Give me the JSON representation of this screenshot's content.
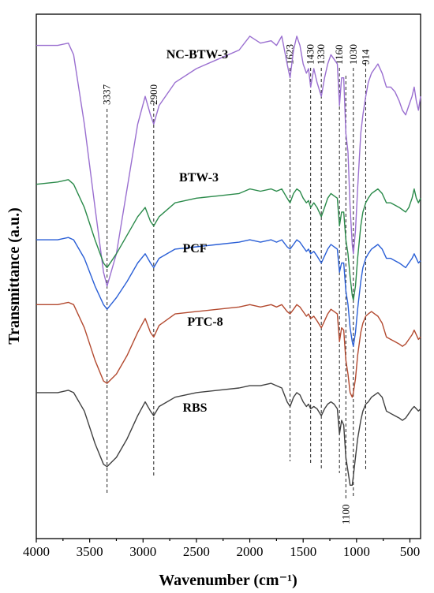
{
  "chart_data": {
    "type": "line",
    "xlabel": "Wavenumber (cm⁻¹)",
    "ylabel": "Transmittance (a.u.)",
    "xlim": [
      4000,
      400
    ],
    "x_reversed": true,
    "y_ticks_shown": false,
    "grid": false,
    "x_ticks": [
      4000,
      3500,
      3000,
      2500,
      2000,
      1500,
      1000,
      500
    ],
    "x_tick_labels": [
      "4000",
      "3500",
      "3000",
      "2500",
      "2000",
      "1500",
      "1000",
      "500"
    ],
    "peaks": [
      {
        "x": 3337,
        "label": "3337"
      },
      {
        "x": 2900,
        "label": "2900"
      },
      {
        "x": 1623,
        "label": "1623"
      },
      {
        "x": 1430,
        "label": "1430"
      },
      {
        "x": 1330,
        "label": "1330"
      },
      {
        "x": 1160,
        "label": "1160"
      },
      {
        "x": 1100,
        "label": "1100"
      },
      {
        "x": 1030,
        "label": "1030"
      },
      {
        "x": 914,
        "label": "914"
      }
    ],
    "series": [
      {
        "name": "NC-BTW-3",
        "color": "#9a6fd0",
        "x": [
          4000,
          3800,
          3700,
          3650,
          3550,
          3450,
          3370,
          3337,
          3250,
          3150,
          3050,
          2980,
          2930,
          2900,
          2850,
          2700,
          2500,
          2300,
          2100,
          2000,
          1900,
          1800,
          1750,
          1700,
          1650,
          1623,
          1590,
          1560,
          1530,
          1500,
          1470,
          1450,
          1430,
          1400,
          1370,
          1330,
          1300,
          1270,
          1240,
          1210,
          1180,
          1160,
          1140,
          1120,
          1100,
          1080,
          1060,
          1040,
          1030,
          1010,
          990,
          960,
          940,
          914,
          890,
          860,
          830,
          800,
          760,
          720,
          680,
          640,
          600,
          570,
          540,
          510,
          480,
          460,
          440,
          420,
          400
        ],
        "y": [
          97,
          97,
          97.5,
          95,
          80,
          62,
          48,
          45,
          52,
          66,
          80,
          86,
          82,
          80,
          84,
          89,
          92,
          94,
          96,
          99,
          97.5,
          98,
          97,
          99,
          93,
          90,
          96,
          99,
          97,
          93,
          91,
          92,
          88,
          92,
          89,
          86,
          90,
          93,
          95,
          94,
          93,
          84,
          90,
          90,
          78,
          74,
          62,
          54,
          52,
          57,
          66,
          78,
          82,
          86,
          89,
          91,
          92,
          93,
          91,
          88,
          88,
          87,
          85,
          83,
          82,
          84,
          86,
          88,
          85,
          83,
          86
        ]
      },
      {
        "name": "BTW-3",
        "color": "#2a8a4a",
        "x": [
          4000,
          3800,
          3700,
          3650,
          3550,
          3450,
          3370,
          3337,
          3250,
          3150,
          3050,
          2980,
          2930,
          2900,
          2850,
          2700,
          2500,
          2300,
          2100,
          2000,
          1900,
          1800,
          1750,
          1700,
          1650,
          1623,
          1590,
          1560,
          1530,
          1500,
          1470,
          1450,
          1430,
          1400,
          1370,
          1330,
          1300,
          1270,
          1240,
          1210,
          1180,
          1160,
          1140,
          1120,
          1100,
          1080,
          1060,
          1040,
          1030,
          1010,
          990,
          960,
          940,
          914,
          890,
          860,
          830,
          800,
          760,
          720,
          680,
          640,
          600,
          570,
          540,
          510,
          480,
          460,
          440,
          420,
          400
        ],
        "y": [
          67,
          67.5,
          68,
          67,
          62,
          55,
          50,
          49,
          52,
          56,
          60,
          62,
          59,
          58,
          60,
          63,
          64,
          64.5,
          65,
          66,
          65.5,
          66,
          65.5,
          66,
          64,
          63,
          65,
          66,
          65.5,
          64,
          63,
          63.5,
          62,
          63,
          62,
          60,
          62,
          64,
          65,
          64.5,
          64,
          58,
          61,
          61,
          55,
          52,
          47,
          43,
          42,
          45,
          51,
          58,
          61,
          63,
          64,
          65,
          65.5,
          66,
          65,
          63,
          63,
          62.5,
          62,
          61.5,
          61,
          62,
          64,
          66,
          64,
          63,
          64
        ]
      },
      {
        "name": "PCF",
        "color": "#2a5fd6",
        "x": [
          4000,
          3800,
          3700,
          3650,
          3550,
          3450,
          3370,
          3337,
          3250,
          3150,
          3050,
          2980,
          2930,
          2900,
          2850,
          2700,
          2500,
          2300,
          2100,
          2000,
          1900,
          1800,
          1750,
          1700,
          1650,
          1623,
          1590,
          1560,
          1530,
          1500,
          1470,
          1450,
          1430,
          1400,
          1370,
          1330,
          1300,
          1270,
          1240,
          1210,
          1180,
          1160,
          1140,
          1120,
          1100,
          1080,
          1060,
          1040,
          1030,
          1010,
          990,
          960,
          940,
          914,
          890,
          860,
          830,
          800,
          760,
          720,
          680,
          640,
          600,
          570,
          540,
          510,
          480,
          460,
          440,
          420,
          400
        ],
        "y": [
          55,
          55,
          55.5,
          55,
          51,
          45,
          41,
          40,
          42.5,
          46,
          50,
          52,
          50,
          49,
          51,
          53,
          53.5,
          54,
          54.5,
          55,
          54.5,
          55,
          54.5,
          55,
          53.5,
          53,
          54,
          55,
          54.5,
          53.5,
          52.5,
          53,
          52,
          52.5,
          51.5,
          50,
          51.5,
          53,
          54,
          53.5,
          53,
          48,
          50,
          50,
          44,
          41,
          36,
          33,
          32,
          35,
          40,
          46,
          49,
          51,
          52,
          53,
          53.5,
          54,
          53,
          51,
          51,
          50.5,
          50,
          49.5,
          49,
          50,
          51,
          52,
          51,
          50,
          50.5
        ]
      },
      {
        "name": "PTC-8",
        "color": "#b34a30",
        "x": [
          4000,
          3800,
          3700,
          3650,
          3550,
          3450,
          3370,
          3337,
          3250,
          3150,
          3050,
          2980,
          2930,
          2900,
          2850,
          2700,
          2500,
          2300,
          2100,
          2000,
          1900,
          1800,
          1750,
          1700,
          1650,
          1623,
          1590,
          1560,
          1530,
          1500,
          1470,
          1450,
          1430,
          1400,
          1370,
          1330,
          1300,
          1270,
          1240,
          1210,
          1180,
          1160,
          1140,
          1120,
          1100,
          1080,
          1060,
          1040,
          1030,
          1010,
          990,
          960,
          940,
          914,
          890,
          860,
          830,
          800,
          760,
          720,
          680,
          640,
          600,
          570,
          540,
          510,
          480,
          460,
          440,
          420,
          400
        ],
        "y": [
          41,
          41,
          41.5,
          41,
          36,
          29,
          24.5,
          24,
          26,
          30,
          35,
          38,
          35,
          34,
          36.5,
          39,
          39.5,
          40,
          40.5,
          41,
          40.5,
          41,
          40.5,
          41,
          39.5,
          39,
          40,
          41,
          40.5,
          39.5,
          38.5,
          39,
          38,
          38.5,
          37.5,
          36,
          37.5,
          39,
          40,
          39.5,
          39,
          33,
          36,
          35.5,
          29,
          26,
          22,
          21,
          22,
          25,
          30,
          35,
          37,
          38.5,
          39,
          39.5,
          39,
          38.5,
          37,
          34,
          33.5,
          33,
          32.5,
          32,
          32.5,
          33.5,
          34.5,
          35.5,
          34.5,
          33.5,
          34
        ]
      },
      {
        "name": "RBS",
        "color": "#404040",
        "x": [
          4000,
          3800,
          3700,
          3650,
          3550,
          3450,
          3370,
          3337,
          3250,
          3150,
          3050,
          2980,
          2930,
          2900,
          2850,
          2700,
          2500,
          2300,
          2100,
          2000,
          1900,
          1800,
          1750,
          1700,
          1650,
          1623,
          1590,
          1560,
          1530,
          1500,
          1470,
          1450,
          1430,
          1400,
          1370,
          1330,
          1300,
          1270,
          1240,
          1210,
          1180,
          1160,
          1140,
          1120,
          1100,
          1080,
          1060,
          1040,
          1030,
          1010,
          990,
          960,
          940,
          914,
          890,
          860,
          830,
          800,
          760,
          720,
          680,
          640,
          600,
          570,
          540,
          510,
          480,
          460,
          440,
          420,
          400
        ],
        "y": [
          22,
          22,
          22.5,
          22,
          18,
          11,
          6.5,
          6,
          8,
          12,
          17,
          20,
          18,
          17,
          19,
          21,
          22,
          22.5,
          23,
          23.5,
          23.5,
          24,
          23.5,
          23,
          20,
          19,
          21,
          22,
          21.5,
          20,
          19,
          19.5,
          18.5,
          19,
          18.5,
          17,
          18.5,
          19.5,
          20,
          19.5,
          18.5,
          13,
          16,
          15,
          8,
          5,
          2,
          2,
          4,
          8,
          12,
          16,
          18,
          19.5,
          20,
          21,
          21.5,
          22,
          21,
          18,
          17.5,
          17,
          16.5,
          16,
          16.5,
          17.5,
          18.5,
          19,
          18.5,
          18,
          18.5
        ]
      }
    ]
  }
}
